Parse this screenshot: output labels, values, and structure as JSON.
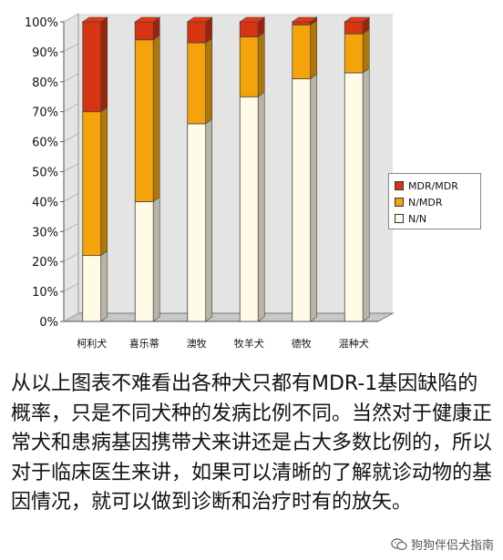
{
  "chart_data": {
    "type": "bar",
    "stacked": true,
    "percent": true,
    "categories": [
      "柯利犬",
      "喜乐蒂",
      "澳牧",
      "牧羊犬",
      "德牧",
      "混种犬"
    ],
    "series": [
      {
        "name": "N/N",
        "values": [
          22,
          40,
          66,
          75,
          81,
          83
        ],
        "color": "#fffbe6"
      },
      {
        "name": "N/MDR",
        "values": [
          48,
          54,
          27,
          20,
          18,
          13
        ],
        "color": "#f4a40a"
      },
      {
        "name": "MDR/MDR",
        "values": [
          30,
          6,
          7,
          5,
          1,
          4
        ],
        "color": "#d63412"
      }
    ],
    "legend_order": [
      "MDR/MDR",
      "N/MDR",
      "N/N"
    ],
    "yticks": [
      "0%",
      "10%",
      "20%",
      "30%",
      "40%",
      "50%",
      "60%",
      "70%",
      "80%",
      "90%",
      "100%"
    ],
    "ylim": [
      0,
      100
    ],
    "grid": false,
    "legend_position": "right"
  },
  "caption": "从以上图表不难看出各种犬只都有MDR-1基因缺陷的概率，只是不同犬种的发病比例不同。当然对于健康正常犬和患病基因携带犬来讲还是占大多数比例的，所以对于临床医生来讲，如果可以清晰的了解就诊动物的基因情况，就可以做到诊断和治疗时有的放矢。",
  "watermark": {
    "text": "狗狗伴侣犬指南",
    "icon": "wechat-icon"
  }
}
